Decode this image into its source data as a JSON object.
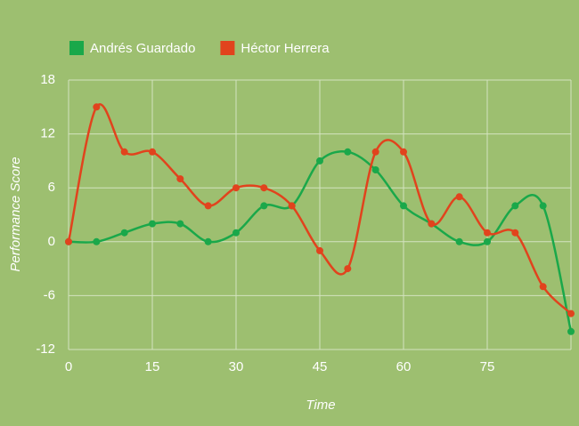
{
  "chart_data": {
    "type": "line",
    "x": [
      0,
      5,
      10,
      15,
      20,
      25,
      30,
      35,
      40,
      45,
      50,
      55,
      60,
      65,
      70,
      75,
      80,
      85,
      90
    ],
    "series": [
      {
        "name": "Andrés Guardado",
        "color": "#1aa84a",
        "values": [
          0,
          0,
          1,
          2,
          2,
          0,
          1,
          4,
          4,
          9,
          10,
          8,
          4,
          2,
          0,
          0,
          4,
          4,
          -10
        ]
      },
      {
        "name": "Héctor Herrera",
        "color": "#e1431d",
        "values": [
          0,
          15,
          10,
          10,
          7,
          4,
          6,
          6,
          4,
          -1,
          -3,
          10,
          10,
          2,
          5,
          1,
          1,
          -5,
          -8
        ]
      }
    ],
    "xlabel": "Time",
    "ylabel": "Performance Score",
    "xlim": [
      0,
      90
    ],
    "xticks": [
      0,
      15,
      30,
      45,
      60,
      75
    ],
    "ylim": [
      -12,
      18
    ],
    "yticks": [
      -12,
      -6,
      0,
      6,
      12,
      18
    ],
    "grid": true,
    "smooth": true,
    "legend": "top-left"
  }
}
